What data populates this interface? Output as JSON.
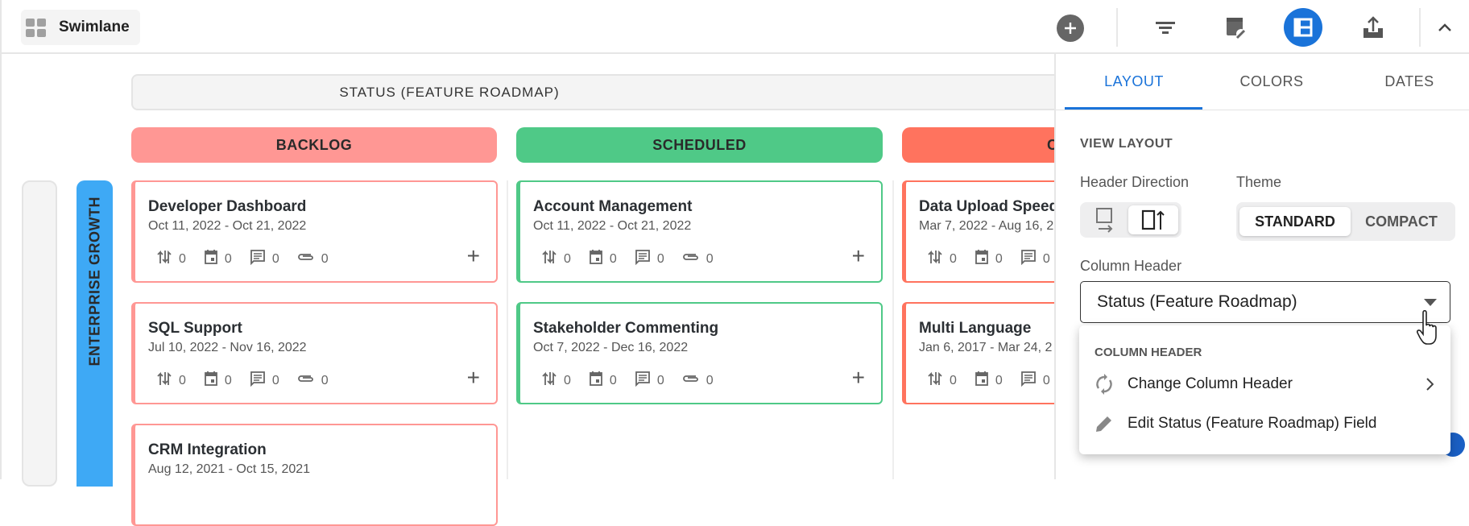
{
  "toolbar": {
    "view_name": "Swimlane",
    "icons": [
      "grid-icon",
      "add-icon",
      "filter-icon",
      "card-settings-icon",
      "layout-icon",
      "export-icon",
      "collapse-chevron-icon"
    ],
    "accent": "#1a73d9"
  },
  "board": {
    "column_field_header": "STATUS (FEATURE ROADMAP)",
    "columns": [
      {
        "label": "BACKLOG",
        "color": "#ff9794"
      },
      {
        "label": "SCHEDULED",
        "color": "#4fc987"
      },
      {
        "label": "C",
        "color": "#ff735e"
      }
    ],
    "lane": {
      "label": "ENTERPRISE GROWTH",
      "color": "#3ea9f5"
    },
    "cards": [
      {
        "title": "Developer Dashboard",
        "dates": "Oct 11, 2022 - Oct 21, 2022",
        "dependencies": "0",
        "milestones": "0",
        "comments": "0",
        "attachments": "0"
      },
      {
        "title": "SQL Support",
        "dates": "Jul 10, 2022 - Nov 16, 2022",
        "dependencies": "0",
        "milestones": "0",
        "comments": "0",
        "attachments": "0"
      },
      {
        "title": "CRM Integration",
        "dates": "Aug 12, 2021 - Oct 15, 2021"
      },
      {
        "title": "Account Management",
        "dates": "Oct 11, 2022 - Oct 21, 2022",
        "dependencies": "0",
        "milestones": "0",
        "comments": "0",
        "attachments": "0"
      },
      {
        "title": "Stakeholder Commenting",
        "dates": "Oct 7, 2022 - Dec 16, 2022",
        "dependencies": "0",
        "milestones": "0",
        "comments": "0",
        "attachments": "0"
      },
      {
        "title": "Data Upload Speed",
        "dates": "Mar 7, 2022 - Aug 16, 2",
        "dependencies": "0",
        "milestones": "0",
        "comments": "0"
      },
      {
        "title": "Multi Language",
        "dates": "Jan 6, 2017 - Mar 24, 2",
        "dependencies": "0",
        "milestones": "0",
        "comments": "0"
      }
    ]
  },
  "panel": {
    "tabs": [
      "LAYOUT",
      "COLORS",
      "DATES"
    ],
    "active_tab": "LAYOUT",
    "section": "VIEW LAYOUT",
    "header_direction_label": "Header Direction",
    "theme_label": "Theme",
    "theme_options": [
      "STANDARD",
      "COMPACT"
    ],
    "theme_selected": "STANDARD",
    "column_header_label": "Column Header",
    "column_header_value": "Status (Feature Roadmap)",
    "menu": {
      "heading": "COLUMN HEADER",
      "items": [
        "Change Column Header",
        "Edit Status (Feature Roadmap) Field"
      ]
    }
  }
}
